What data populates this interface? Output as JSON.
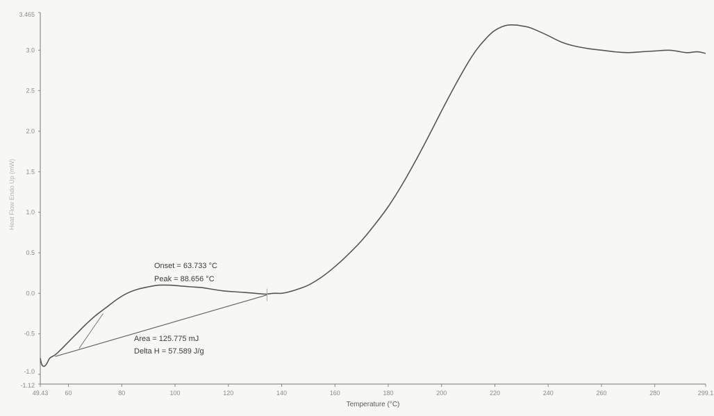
{
  "chart_data": {
    "type": "line",
    "xlabel": "Temperature (°C)",
    "ylabel": "Heat Flow Endo Up (mW)",
    "xlim": [
      49.43,
      299.1
    ],
    "ylim": [
      -1.12,
      3.465
    ],
    "x_ticks": [
      {
        "value": 49.43,
        "label": "49.43"
      },
      {
        "value": 60,
        "label": "60"
      },
      {
        "value": 80,
        "label": "80"
      },
      {
        "value": 100,
        "label": "100"
      },
      {
        "value": 120,
        "label": "120"
      },
      {
        "value": 140,
        "label": "140"
      },
      {
        "value": 160,
        "label": "160"
      },
      {
        "value": 180,
        "label": "180"
      },
      {
        "value": 200,
        "label": "200"
      },
      {
        "value": 220,
        "label": "220"
      },
      {
        "value": 240,
        "label": "240"
      },
      {
        "value": 260,
        "label": "260"
      },
      {
        "value": 280,
        "label": "280"
      },
      {
        "value": 299.1,
        "label": "299.1"
      }
    ],
    "y_ticks": [
      {
        "value": 3.465,
        "label": "3.465"
      },
      {
        "value": 3.0,
        "label": "3.0"
      },
      {
        "value": 2.5,
        "label": "2.5"
      },
      {
        "value": 2.0,
        "label": "2.0"
      },
      {
        "value": 1.5,
        "label": "1.5"
      },
      {
        "value": 1.0,
        "label": "1.0"
      },
      {
        "value": 0.5,
        "label": "0.5"
      },
      {
        "value": 0.0,
        "label": "0.0"
      },
      {
        "value": -0.5,
        "label": "-0.5"
      },
      {
        "value": -1.0,
        "label": "-1.0"
      },
      {
        "value": -1.12,
        "label": "-1.12"
      }
    ],
    "series": [
      {
        "color": "#555555",
        "x": [
          49.43,
          50,
          51,
          52,
          53,
          55,
          57,
          60,
          63,
          66,
          70,
          74,
          78,
          82,
          86,
          90,
          94,
          98,
          102,
          106,
          110,
          114,
          118,
          122,
          126,
          130,
          134,
          137,
          140,
          143,
          146,
          150,
          155,
          160,
          165,
          170,
          175,
          180,
          185,
          190,
          195,
          200,
          205,
          210,
          213,
          216,
          219,
          222,
          225,
          228,
          230,
          233,
          236,
          240,
          245,
          250,
          255,
          260,
          265,
          270,
          275,
          280,
          285,
          288,
          292,
          296,
          299.1
        ],
        "y": [
          -0.8,
          -0.88,
          -0.9,
          -0.86,
          -0.8,
          -0.76,
          -0.7,
          -0.6,
          -0.5,
          -0.4,
          -0.28,
          -0.18,
          -0.08,
          0.0,
          0.05,
          0.08,
          0.1,
          0.1,
          0.09,
          0.08,
          0.07,
          0.05,
          0.03,
          0.02,
          0.01,
          0.0,
          -0.01,
          0.0,
          0.0,
          0.02,
          0.05,
          0.1,
          0.2,
          0.33,
          0.48,
          0.65,
          0.85,
          1.07,
          1.33,
          1.62,
          1.93,
          2.25,
          2.56,
          2.85,
          3.0,
          3.12,
          3.22,
          3.28,
          3.31,
          3.31,
          3.3,
          3.28,
          3.24,
          3.18,
          3.1,
          3.05,
          3.02,
          3.0,
          2.98,
          2.97,
          2.98,
          2.99,
          3.0,
          2.99,
          2.97,
          2.98,
          2.96
        ]
      }
    ],
    "baseline": {
      "x": [
        55,
        134.5
      ],
      "y": [
        -0.78,
        -0.02
      ]
    },
    "onset_tangent": {
      "x": [
        64,
        73
      ],
      "y": [
        -0.68,
        -0.25
      ]
    },
    "annotations": {
      "onset": "Onset = 63.733 °C",
      "peak": "Peak = 88.656 °C",
      "area": "Area = 125.775 mJ",
      "delta_h": "Delta H = 57.589 J/g"
    },
    "grid": false,
    "legend": "none"
  }
}
